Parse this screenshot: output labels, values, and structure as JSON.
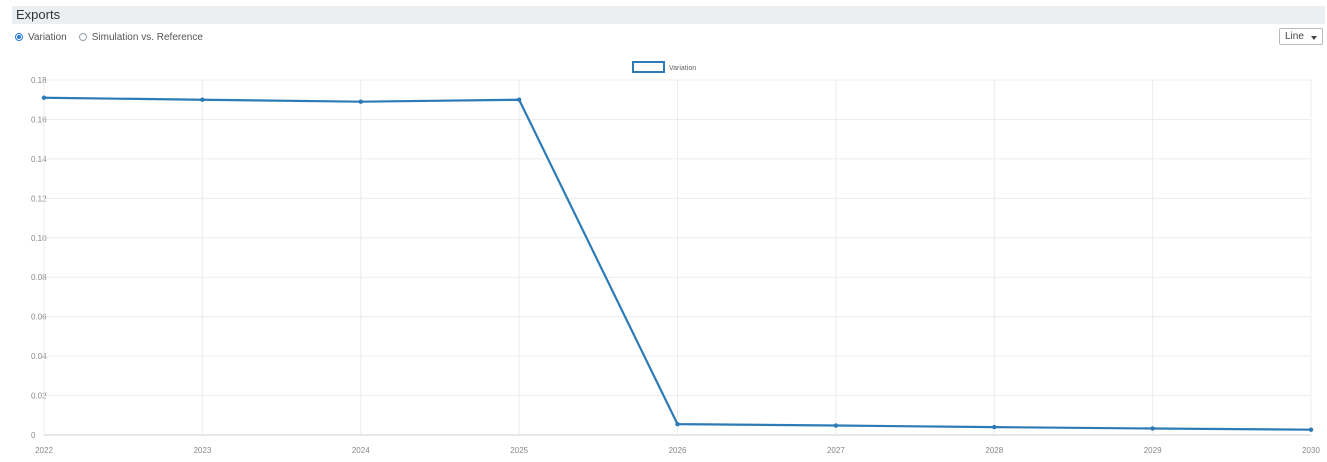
{
  "panel": {
    "title": "Exports"
  },
  "view_mode": {
    "options": [
      "Variation",
      "Simulation vs. Reference"
    ],
    "selected": "Variation"
  },
  "chart_type_select": {
    "value": "Line"
  },
  "chart_data": {
    "type": "line",
    "x": [
      "2022",
      "2023",
      "2024",
      "2025",
      "2026",
      "2027",
      "2028",
      "2029",
      "2030"
    ],
    "series": [
      {
        "name": "Variation",
        "color": "#2d7bb6",
        "values": [
          0.171,
          0.17,
          0.169,
          0.17,
          0.0055,
          0.0048,
          0.004,
          0.0033,
          0.0027
        ]
      }
    ],
    "ylim": [
      0,
      0.18
    ],
    "yticks": [
      "0",
      "0.02",
      "0.04",
      "0.06",
      "0.08",
      "0.10",
      "0.12",
      "0.14",
      "0.16",
      "0.18"
    ],
    "grid": true,
    "legend_position": "top-center",
    "title": "",
    "xlabel": "",
    "ylabel": ""
  }
}
